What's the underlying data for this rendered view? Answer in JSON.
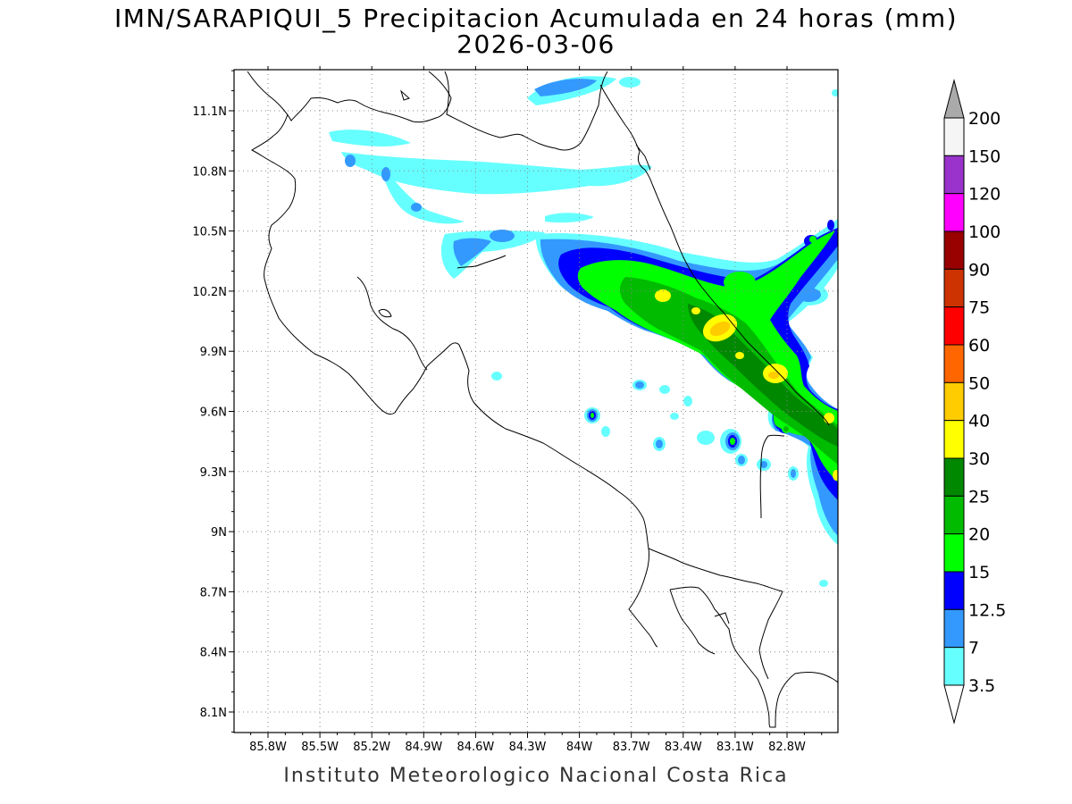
{
  "title": {
    "line1": "IMN/SARAPIQUI_5 Precipitacion Acumulada en 24 horas (mm)",
    "line2": "2026-03-06"
  },
  "footer": "Instituto Meteorologico Nacional Costa Rica",
  "axes": {
    "lon_labels": [
      "85.8W",
      "85.5W",
      "85.2W",
      "84.9W",
      "84.6W",
      "84.3W",
      "84W",
      "83.7W",
      "83.4W",
      "83.1W",
      "82.8W"
    ],
    "lat_labels": [
      "11.1N",
      "10.8N",
      "10.5N",
      "10.2N",
      "9.9N",
      "9.6N",
      "9.3N",
      "9N",
      "8.7N",
      "8.4N",
      "8.1N"
    ],
    "grid": "dotted"
  },
  "colorbar": {
    "levels": [
      "200",
      "150",
      "120",
      "100",
      "90",
      "75",
      "60",
      "50",
      "40",
      "30",
      "25",
      "20",
      "15",
      "12.5",
      "7",
      "3.5"
    ],
    "colors": [
      "#f5f5f5",
      "#9933cc",
      "#ff00ff",
      "#990000",
      "#cc3300",
      "#ff0000",
      "#ff6600",
      "#ffcc00",
      "#ffff00",
      "#008800",
      "#00bb00",
      "#00ff00",
      "#0000ff",
      "#3399ff",
      "#66ffff"
    ],
    "top_arrow_color": "#aaaaaa",
    "bottom_arrow_color": "#ffffff"
  },
  "palette": {
    "light_cyan": "#66ffff",
    "light_blue": "#3399ff",
    "blue": "#0000ff",
    "bright_green": "#00ff00",
    "green": "#00bb00",
    "dark_green": "#008800",
    "yellow": "#ffff00",
    "gold": "#ffcc00"
  }
}
